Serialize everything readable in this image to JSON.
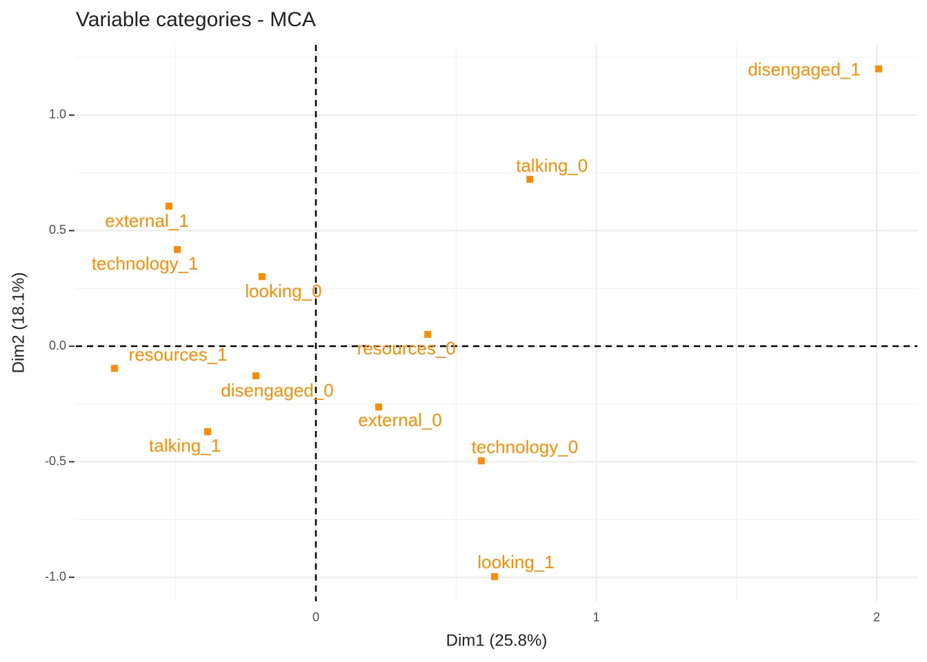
{
  "chart_data": {
    "type": "scatter",
    "title": "Variable categories - MCA",
    "x_label": "Dim1 (25.8%)",
    "y_label": "Dim2 (18.1%)",
    "color": "#ff8c00",
    "grid": true,
    "xlim": [
      -0.856,
      2.145
    ],
    "ylim": [
      -1.104,
      1.304
    ],
    "xticks": [
      0,
      1,
      2
    ],
    "yticks": [
      {
        "value": -1,
        "label": "-1.0"
      },
      -0.5,
      {
        "value": 0,
        "label": "0.0"
      },
      0.5,
      {
        "value": 1,
        "label": "1.0"
      }
    ],
    "labels": [
      "disengaged_1",
      "talking_0",
      "external_1",
      "technology_1",
      "looking_0",
      "resources_0",
      "resources_1",
      "disengaged_0",
      "external_0",
      "talking_1",
      "technology_0",
      "looking_1"
    ],
    "x": [
      2.007,
      0.763,
      -0.524,
      -0.494,
      -0.192,
      0.399,
      -0.718,
      -0.214,
      0.224,
      -0.386,
      0.59,
      0.637
    ],
    "y": [
      1.2,
      0.722,
      0.606,
      0.418,
      0.301,
      0.051,
      -0.096,
      -0.128,
      -0.263,
      -0.37,
      -0.496,
      -0.997
    ]
  }
}
